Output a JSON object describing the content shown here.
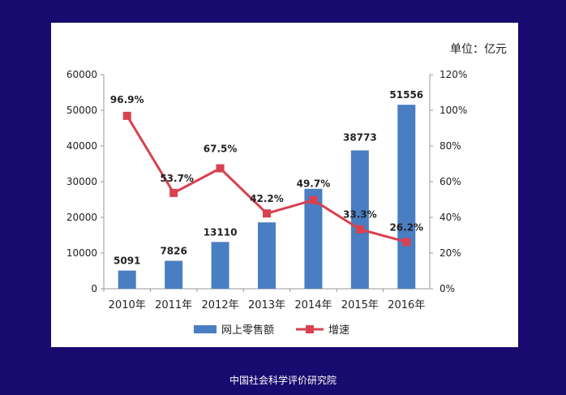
{
  "footer": "中国社会科学评价研究院",
  "chart_data": {
    "type": "bar",
    "unit_note": "单位：亿元",
    "categories": [
      "2010年",
      "2011年",
      "2012年",
      "2013年",
      "2014年",
      "2015年",
      "2016年"
    ],
    "series": [
      {
        "name": "网上零售额",
        "type": "bar",
        "axis": "left",
        "color": "#4a7ec2",
        "values": [
          5091,
          7826,
          13110,
          18600,
          28000,
          38773,
          51556
        ],
        "data_labels": [
          "5091",
          "7826",
          "13110",
          "",
          "",
          "38773",
          "51556"
        ]
      },
      {
        "name": "增速",
        "type": "line",
        "axis": "right",
        "color": "#d9414f",
        "values": [
          96.9,
          53.7,
          67.5,
          42.2,
          49.7,
          33.3,
          26.2
        ],
        "data_labels": [
          "96.9%",
          "53.7%",
          "67.5%",
          "42.2%",
          "49.7%",
          "33.3%",
          "26.2%"
        ]
      }
    ],
    "left_axis": {
      "ylim": [
        0,
        60000
      ],
      "ticks": [
        "0",
        "10000",
        "20000",
        "30000",
        "40000",
        "50000",
        "60000"
      ]
    },
    "right_axis": {
      "ylim": [
        0,
        120
      ],
      "ticks": [
        "0%",
        "20%",
        "40%",
        "60%",
        "80%",
        "100%",
        "120%"
      ]
    },
    "legend": {
      "placement": "bottom",
      "items": [
        "网上零售额",
        "增速"
      ]
    },
    "grid": false
  }
}
